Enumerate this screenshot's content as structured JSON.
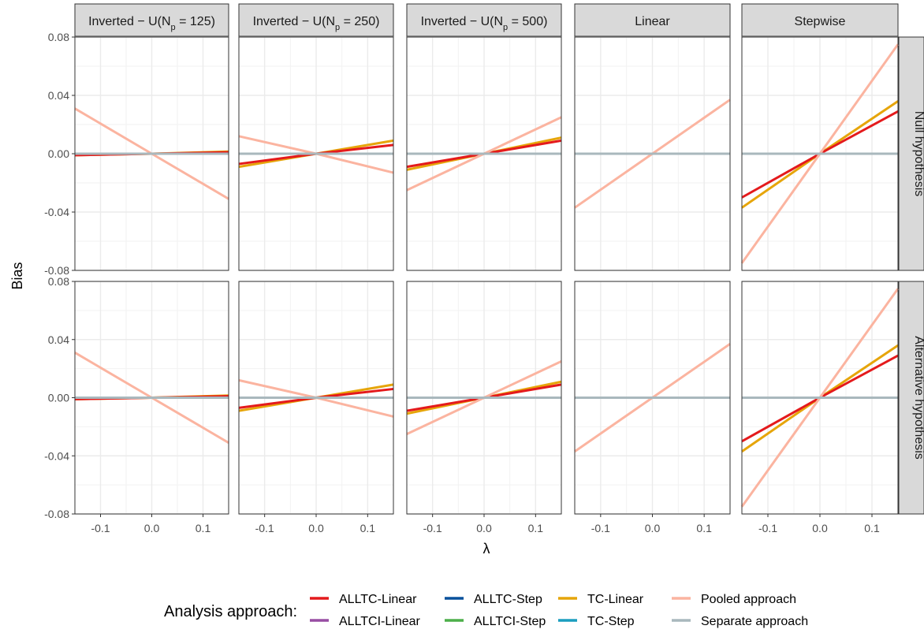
{
  "chart_data": {
    "type": "line",
    "xlabel": "λ",
    "ylabel": "Bias",
    "xlim": [
      -0.15,
      0.15
    ],
    "ylim": [
      -0.08,
      0.08
    ],
    "x_ticks": [
      -0.1,
      0.0,
      0.1
    ],
    "x_tick_labels": [
      "-0.1",
      "0.0",
      "0.1"
    ],
    "y_ticks": [
      -0.08,
      -0.04,
      0.0,
      0.04,
      0.08
    ],
    "y_tick_labels": [
      "-0.08",
      "-0.04",
      "0.00",
      "0.04",
      "0.08"
    ],
    "grid": true,
    "legend_position": "bottom",
    "columns": [
      {
        "base": "Inverted − U(N",
        "sub": "p",
        "tail": " = 125)"
      },
      {
        "base": "Inverted − U(N",
        "sub": "p",
        "tail": " = 250)"
      },
      {
        "base": "Inverted − U(N",
        "sub": "p",
        "tail": " = 500)"
      },
      {
        "base": "Linear",
        "sub": "",
        "tail": ""
      },
      {
        "base": "Stepwise",
        "sub": "",
        "tail": ""
      }
    ],
    "rows": [
      "Null hypothesis",
      "Alternative hypothesis"
    ],
    "legend": {
      "title": "Analysis approach:",
      "entries": [
        {
          "key": "alltc_linear",
          "name": "ALLTC-Linear",
          "color": "#e41a1c"
        },
        {
          "key": "alltci_linear",
          "name": "ALLTCI-Linear",
          "color": "#984ea3"
        },
        {
          "key": "alltc_step",
          "name": "ALLTC-Step",
          "color": "#08519c"
        },
        {
          "key": "alltci_step",
          "name": "ALLTCI-Step",
          "color": "#4daf4a"
        },
        {
          "key": "tc_linear",
          "name": "TC-Linear",
          "color": "#e6a50a"
        },
        {
          "key": "tc_step",
          "name": "TC-Step",
          "color": "#1b9ebf"
        },
        {
          "key": "pooled",
          "name": "Pooled approach",
          "color": "#fbb4a0"
        },
        {
          "key": "separate",
          "name": "Separate approach",
          "color": "#a9b8bd"
        }
      ]
    },
    "panels": [
      {
        "row": 0,
        "col": 0,
        "series": {
          "separate": [
            [
              -0.15,
              0.0
            ],
            [
              0.15,
              0.0
            ]
          ],
          "tc_linear": [
            [
              -0.15,
              -0.001
            ],
            [
              0.0,
              0.0
            ],
            [
              0.15,
              0.0015
            ]
          ],
          "alltc_linear": [
            [
              -0.15,
              -0.001
            ],
            [
              0.0,
              0.0
            ],
            [
              0.15,
              0.001
            ]
          ],
          "pooled": [
            [
              -0.15,
              0.031
            ],
            [
              0.0,
              0.0
            ],
            [
              0.15,
              -0.031
            ]
          ]
        }
      },
      {
        "row": 0,
        "col": 1,
        "series": {
          "separate": [
            [
              -0.15,
              0.0
            ],
            [
              0.15,
              0.0
            ]
          ],
          "tc_linear": [
            [
              -0.15,
              -0.009
            ],
            [
              0.0,
              0.0
            ],
            [
              0.15,
              0.009
            ]
          ],
          "alltc_linear": [
            [
              -0.15,
              -0.007
            ],
            [
              0.0,
              0.0
            ],
            [
              0.15,
              0.006
            ]
          ],
          "pooled": [
            [
              -0.15,
              0.012
            ],
            [
              0.0,
              0.0
            ],
            [
              0.15,
              -0.013
            ]
          ]
        }
      },
      {
        "row": 0,
        "col": 2,
        "series": {
          "separate": [
            [
              -0.15,
              0.0
            ],
            [
              0.15,
              0.0
            ]
          ],
          "tc_linear": [
            [
              -0.15,
              -0.011
            ],
            [
              0.0,
              0.0
            ],
            [
              0.15,
              0.011
            ]
          ],
          "alltc_linear": [
            [
              -0.15,
              -0.009
            ],
            [
              0.0,
              0.0
            ],
            [
              0.15,
              0.009
            ]
          ],
          "pooled": [
            [
              -0.15,
              -0.025
            ],
            [
              0.0,
              0.0
            ],
            [
              0.15,
              0.025
            ]
          ]
        }
      },
      {
        "row": 0,
        "col": 3,
        "series": {
          "separate": [
            [
              -0.15,
              0.0
            ],
            [
              0.15,
              0.0
            ]
          ],
          "pooled": [
            [
              -0.15,
              -0.037
            ],
            [
              0.0,
              0.0
            ],
            [
              0.15,
              0.037
            ]
          ]
        }
      },
      {
        "row": 0,
        "col": 4,
        "series": {
          "separate": [
            [
              -0.15,
              0.0
            ],
            [
              0.15,
              0.0
            ]
          ],
          "tc_linear": [
            [
              -0.15,
              -0.037
            ],
            [
              0.0,
              0.0
            ],
            [
              0.15,
              0.036
            ]
          ],
          "alltc_linear": [
            [
              -0.15,
              -0.03
            ],
            [
              0.0,
              0.0
            ],
            [
              0.15,
              0.029
            ]
          ],
          "pooled": [
            [
              -0.15,
              -0.075
            ],
            [
              0.0,
              0.0
            ],
            [
              0.15,
              0.075
            ]
          ]
        }
      },
      {
        "row": 1,
        "col": 0,
        "series": {
          "separate": [
            [
              -0.15,
              0.0
            ],
            [
              0.15,
              0.0
            ]
          ],
          "tc_linear": [
            [
              -0.15,
              -0.001
            ],
            [
              0.0,
              0.0
            ],
            [
              0.15,
              0.0015
            ]
          ],
          "alltc_linear": [
            [
              -0.15,
              -0.001
            ],
            [
              0.0,
              0.0
            ],
            [
              0.15,
              0.001
            ]
          ],
          "pooled": [
            [
              -0.15,
              0.031
            ],
            [
              0.0,
              0.0
            ],
            [
              0.15,
              -0.031
            ]
          ]
        }
      },
      {
        "row": 1,
        "col": 1,
        "series": {
          "separate": [
            [
              -0.15,
              0.0
            ],
            [
              0.15,
              0.0
            ]
          ],
          "tc_linear": [
            [
              -0.15,
              -0.009
            ],
            [
              0.0,
              0.0
            ],
            [
              0.15,
              0.009
            ]
          ],
          "alltc_linear": [
            [
              -0.15,
              -0.007
            ],
            [
              0.0,
              0.0
            ],
            [
              0.15,
              0.006
            ]
          ],
          "pooled": [
            [
              -0.15,
              0.012
            ],
            [
              0.0,
              0.0
            ],
            [
              0.15,
              -0.013
            ]
          ]
        }
      },
      {
        "row": 1,
        "col": 2,
        "series": {
          "separate": [
            [
              -0.15,
              0.0
            ],
            [
              0.15,
              0.0
            ]
          ],
          "tc_linear": [
            [
              -0.15,
              -0.011
            ],
            [
              0.0,
              0.0
            ],
            [
              0.15,
              0.011
            ]
          ],
          "alltc_linear": [
            [
              -0.15,
              -0.009
            ],
            [
              0.0,
              0.0
            ],
            [
              0.15,
              0.009
            ]
          ],
          "pooled": [
            [
              -0.15,
              -0.025
            ],
            [
              0.0,
              0.0
            ],
            [
              0.15,
              0.025
            ]
          ]
        }
      },
      {
        "row": 1,
        "col": 3,
        "series": {
          "separate": [
            [
              -0.15,
              0.0
            ],
            [
              0.15,
              0.0
            ]
          ],
          "pooled": [
            [
              -0.15,
              -0.037
            ],
            [
              0.0,
              0.0
            ],
            [
              0.15,
              0.037
            ]
          ]
        }
      },
      {
        "row": 1,
        "col": 4,
        "series": {
          "separate": [
            [
              -0.15,
              0.0
            ],
            [
              0.15,
              0.0
            ]
          ],
          "tc_linear": [
            [
              -0.15,
              -0.037
            ],
            [
              0.0,
              0.0
            ],
            [
              0.15,
              0.036
            ]
          ],
          "alltc_linear": [
            [
              -0.15,
              -0.03
            ],
            [
              0.0,
              0.0
            ],
            [
              0.15,
              0.029
            ]
          ],
          "pooled": [
            [
              -0.15,
              -0.075
            ],
            [
              0.0,
              0.0
            ],
            [
              0.15,
              0.075
            ]
          ]
        }
      }
    ]
  }
}
